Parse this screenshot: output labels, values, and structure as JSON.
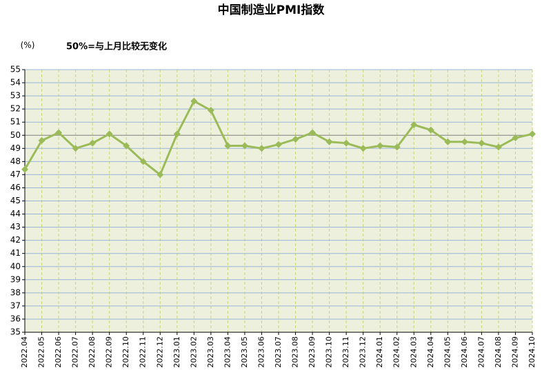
{
  "chart_data": {
    "type": "line",
    "title": "中国制造业PMI指数",
    "y_label": "(%)",
    "annotation": "50%=与上月比较无变化",
    "categories": [
      "2022.04",
      "2022.05",
      "2022.06",
      "2022.07",
      "2022.08",
      "2022.09",
      "2022.10",
      "2022.11",
      "2022.12",
      "2023.01",
      "2023.02",
      "2023.03",
      "2023.04",
      "2023.05",
      "2023.06",
      "2023.07",
      "2023.08",
      "2023.09",
      "2023.10",
      "2023.11",
      "2023.12",
      "2024.01",
      "2024.02",
      "2024.03",
      "2024.04",
      "2024.05",
      "2024.06",
      "2024.07",
      "2024.08",
      "2024.09",
      "2024.10"
    ],
    "values": [
      47.4,
      49.6,
      50.2,
      49.0,
      49.4,
      50.1,
      49.2,
      48.0,
      47.0,
      50.1,
      52.6,
      51.9,
      49.2,
      49.2,
      49.0,
      49.3,
      49.7,
      50.2,
      49.5,
      49.4,
      49.0,
      49.2,
      49.1,
      50.8,
      50.4,
      49.5,
      49.5,
      49.4,
      49.1,
      49.8,
      50.1
    ],
    "color": "#9bbb59",
    "ylim": [
      35,
      55
    ],
    "yticks": [
      35,
      36,
      37,
      38,
      39,
      40,
      41,
      42,
      43,
      44,
      45,
      46,
      47,
      48,
      49,
      50,
      51,
      52,
      53,
      54,
      55
    ],
    "grid": true,
    "reference_line": 50
  }
}
